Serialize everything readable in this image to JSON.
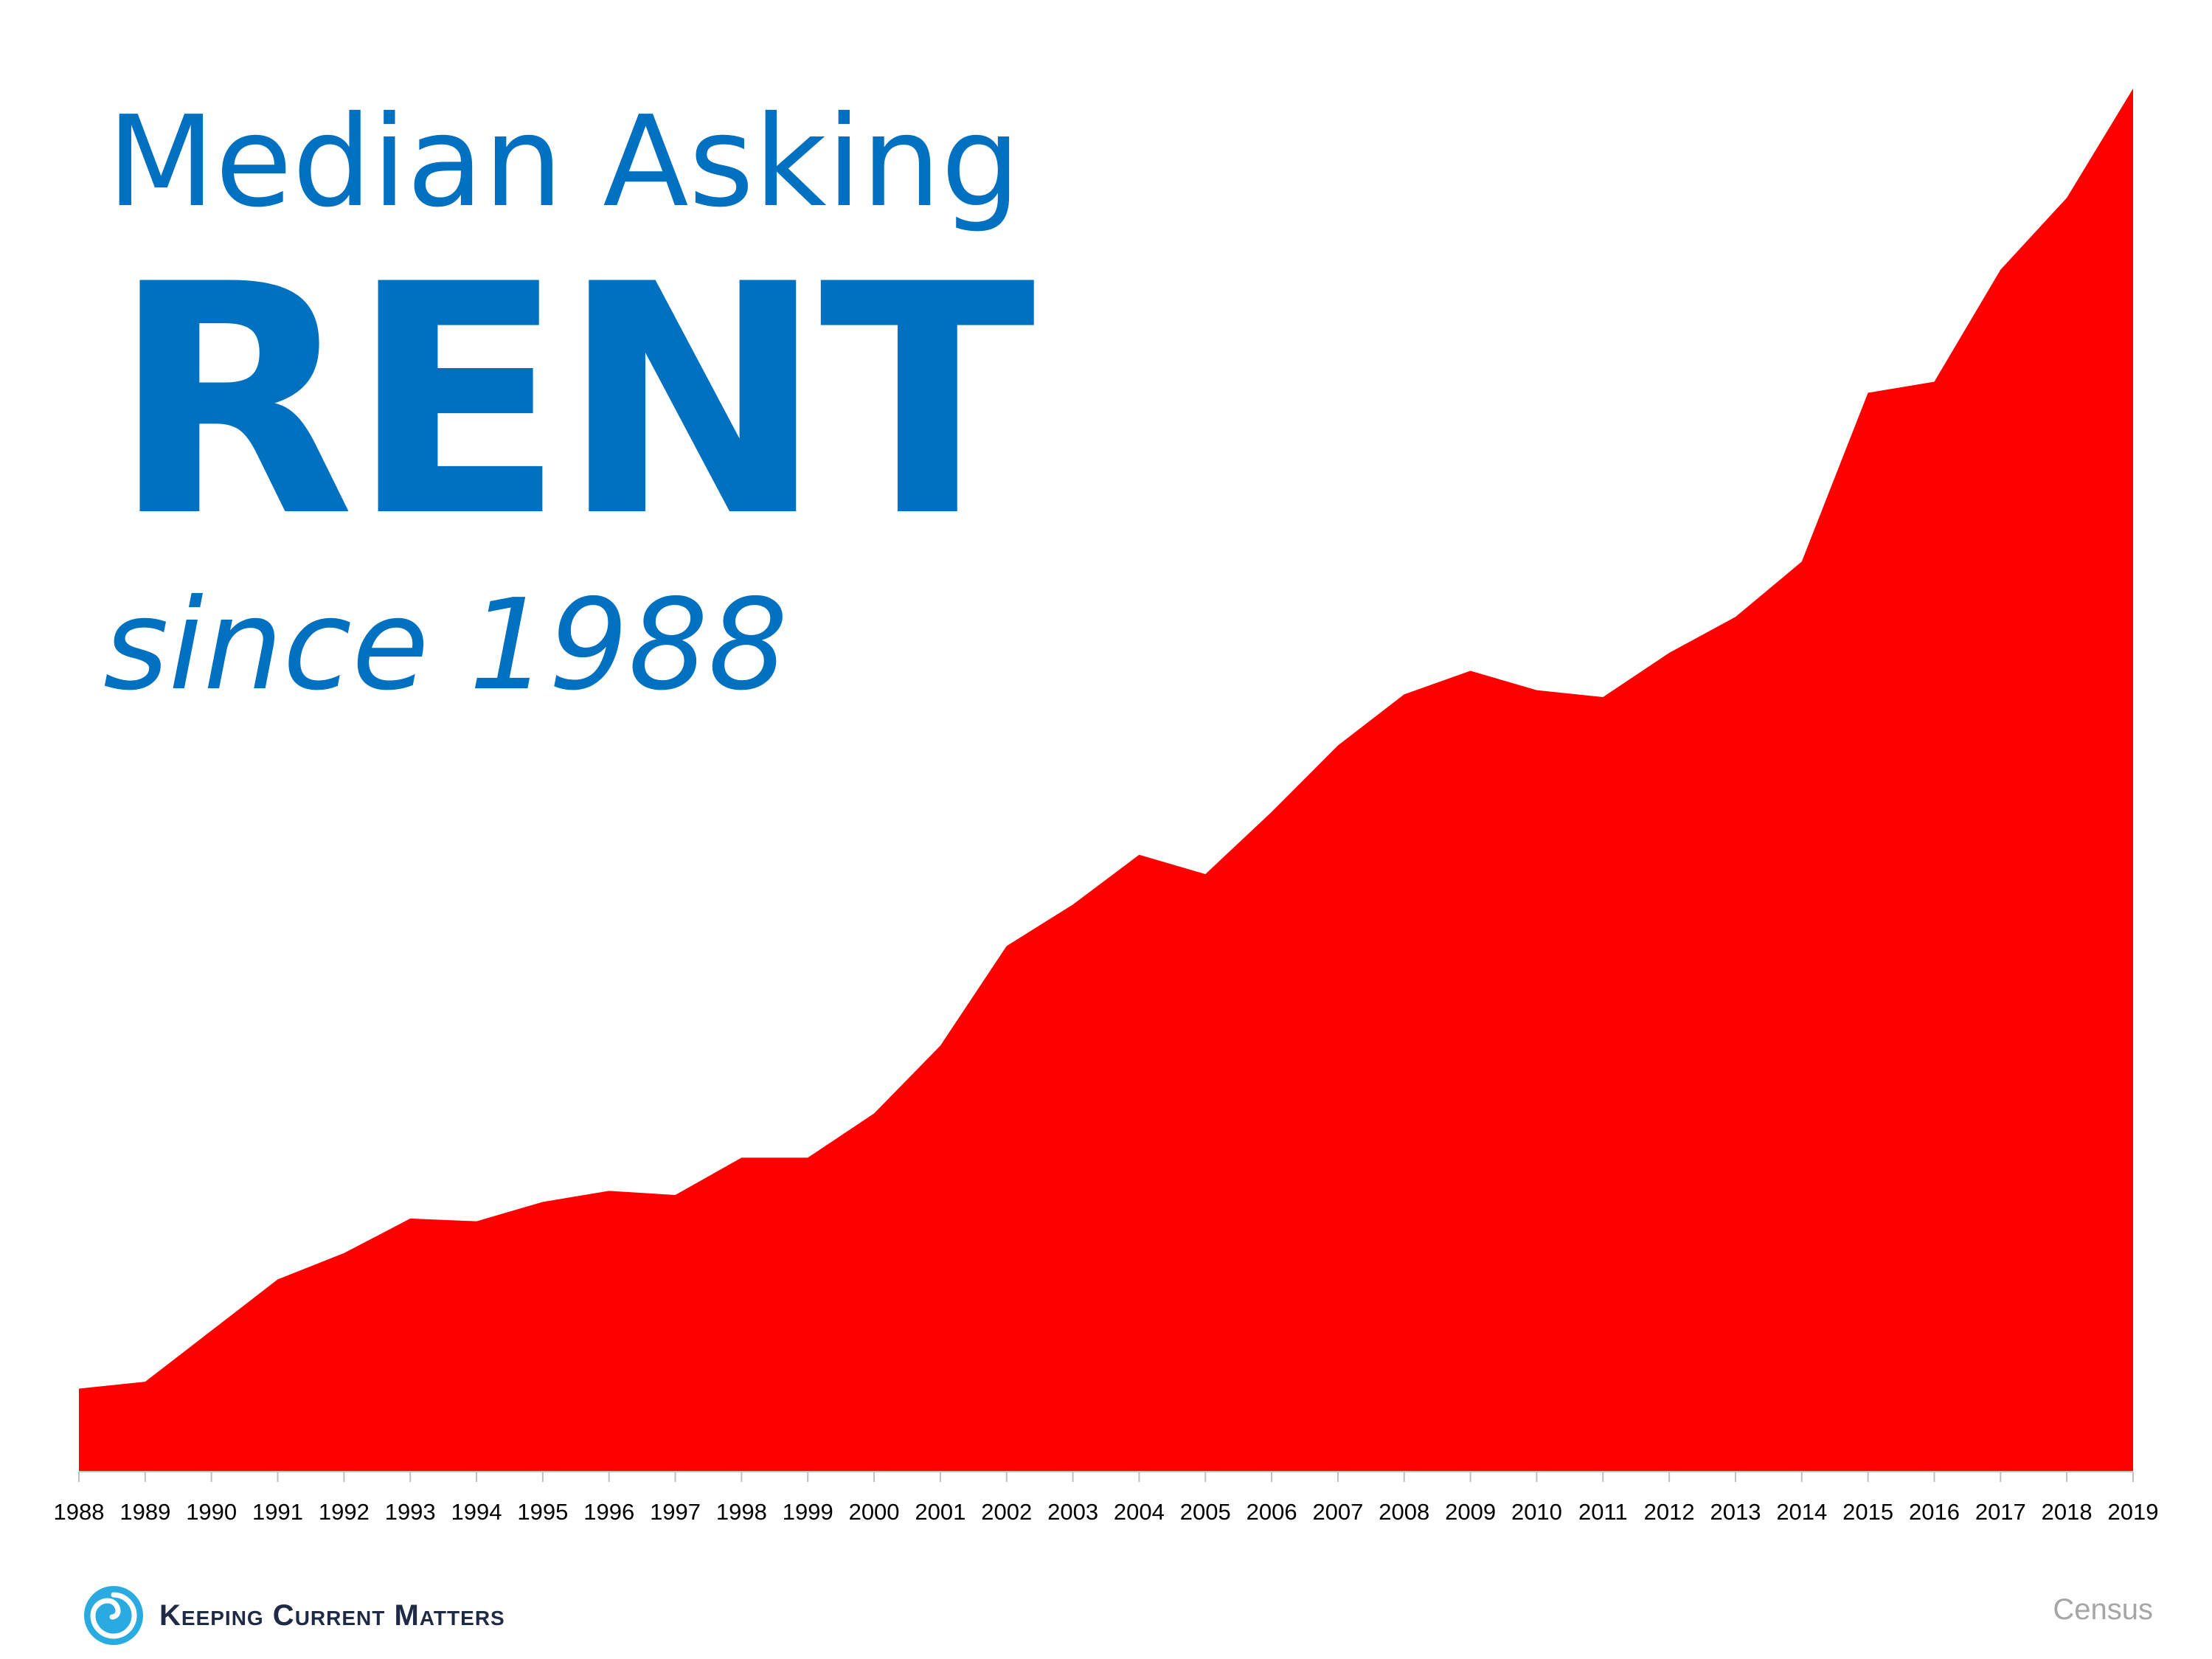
{
  "header": {
    "title_line1": "Median Asking",
    "title_line2": "RENT",
    "title_line3": "since 1988"
  },
  "footer": {
    "brand": "Keeping Current Matters",
    "source": "Census"
  },
  "colors": {
    "title": "#0070c0",
    "area": "#ff0000",
    "brand_logo": "#29abe2",
    "source": "#a6a6a6"
  },
  "chart_data": {
    "type": "area",
    "title": "Median Asking RENT since 1988",
    "xlabel": "",
    "ylabel": "",
    "categories": [
      "1988",
      "1989",
      "1990",
      "1991",
      "1992",
      "1993",
      "1994",
      "1995",
      "1996",
      "1997",
      "1998",
      "1999",
      "2000",
      "2001",
      "2002",
      "2003",
      "2004",
      "2005",
      "2006",
      "2007",
      "2008",
      "2009",
      "2010",
      "2011",
      "2012",
      "2013",
      "2014",
      "2015",
      "2016",
      "2017",
      "2018",
      "2019"
    ],
    "series": [
      {
        "values": [
          6.0,
          6.5,
          10.2,
          13.9,
          15.8,
          18.3,
          18.1,
          19.5,
          20.3,
          20.0,
          22.7,
          22.7,
          25.9,
          30.8,
          38.0,
          41.0,
          44.6,
          43.2,
          47.7,
          52.5,
          56.2,
          57.9,
          56.5,
          56.0,
          59.2,
          61.8,
          65.8,
          78.0,
          78.8,
          86.9,
          92.1,
          100.0
        ]
      }
    ],
    "ylim": [
      0,
      100
    ],
    "y_axis_shown": false,
    "grid": false,
    "legend": "none"
  }
}
